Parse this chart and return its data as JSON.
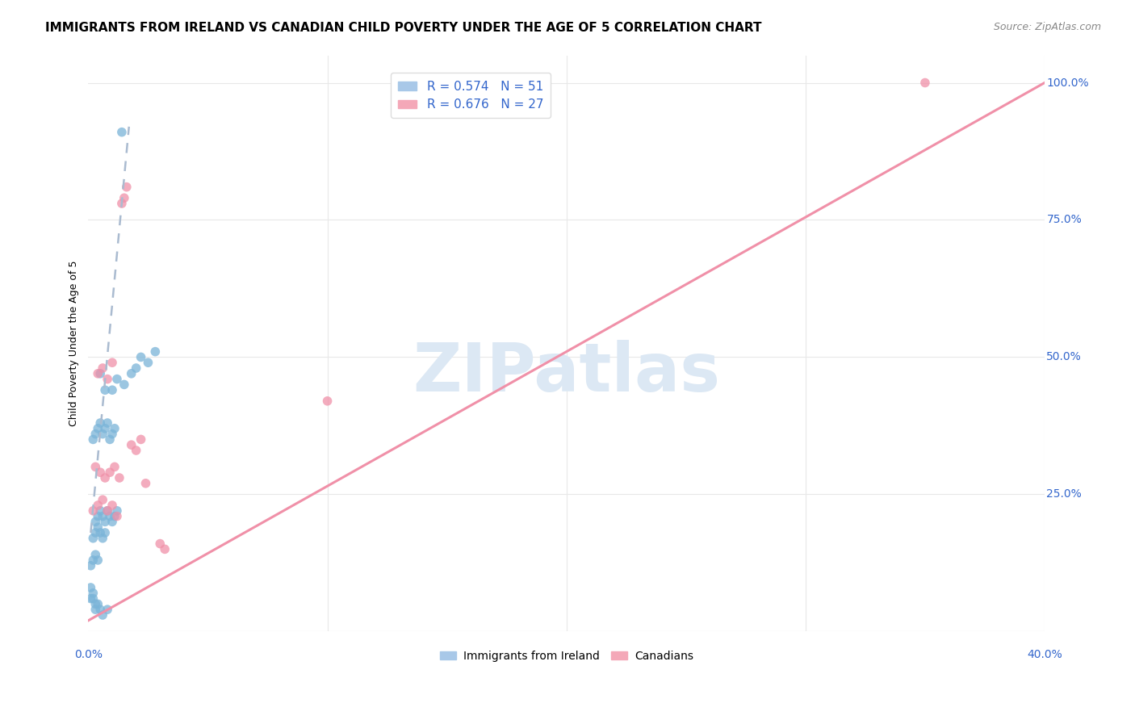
{
  "title": "IMMIGRANTS FROM IRELAND VS CANADIAN CHILD POVERTY UNDER THE AGE OF 5 CORRELATION CHART",
  "source": "Source: ZipAtlas.com",
  "ylabel": "Child Poverty Under the Age of 5",
  "watermark_text": "ZIPatlas",
  "ytick_vals": [
    0.25,
    0.5,
    0.75,
    1.0
  ],
  "ytick_labels": [
    "25.0%",
    "50.0%",
    "75.0%",
    "100.0%"
  ],
  "xtick_left_label": "0.0%",
  "xtick_right_label": "40.0%",
  "xlim": [
    0.0,
    0.4
  ],
  "ylim": [
    0.0,
    1.05
  ],
  "legend_entries": [
    {
      "label": "R = 0.574   N = 51",
      "color": "#a8c8e8"
    },
    {
      "label": "R = 0.676   N = 27",
      "color": "#f4a8b8"
    }
  ],
  "bottom_legend_entries": [
    {
      "label": "Immigrants from Ireland",
      "color": "#a8c8e8"
    },
    {
      "label": "Canadians",
      "color": "#f4a8b8"
    }
  ],
  "blue_scatter_x": [
    0.005,
    0.007,
    0.01,
    0.012,
    0.015,
    0.018,
    0.02,
    0.022,
    0.025,
    0.028,
    0.002,
    0.003,
    0.004,
    0.005,
    0.006,
    0.007,
    0.008,
    0.009,
    0.01,
    0.011,
    0.003,
    0.004,
    0.005,
    0.006,
    0.007,
    0.008,
    0.009,
    0.01,
    0.011,
    0.012,
    0.002,
    0.003,
    0.004,
    0.005,
    0.006,
    0.007,
    0.001,
    0.002,
    0.003,
    0.004,
    0.001,
    0.001,
    0.002,
    0.002,
    0.003,
    0.003,
    0.004,
    0.005,
    0.006,
    0.008,
    0.014
  ],
  "blue_scatter_y": [
    0.47,
    0.44,
    0.44,
    0.46,
    0.45,
    0.47,
    0.48,
    0.5,
    0.49,
    0.51,
    0.35,
    0.36,
    0.37,
    0.38,
    0.36,
    0.37,
    0.38,
    0.35,
    0.36,
    0.37,
    0.2,
    0.21,
    0.22,
    0.21,
    0.2,
    0.22,
    0.21,
    0.2,
    0.21,
    0.22,
    0.17,
    0.18,
    0.19,
    0.18,
    0.17,
    0.18,
    0.12,
    0.13,
    0.14,
    0.13,
    0.08,
    0.06,
    0.07,
    0.06,
    0.05,
    0.04,
    0.05,
    0.04,
    0.03,
    0.04,
    0.91
  ],
  "pink_scatter_x": [
    0.002,
    0.004,
    0.006,
    0.008,
    0.01,
    0.012,
    0.003,
    0.005,
    0.007,
    0.009,
    0.011,
    0.013,
    0.004,
    0.006,
    0.008,
    0.01,
    0.018,
    0.02,
    0.022,
    0.03,
    0.032,
    0.1,
    0.015,
    0.016,
    0.014,
    0.024,
    0.35
  ],
  "pink_scatter_y": [
    0.22,
    0.23,
    0.24,
    0.22,
    0.23,
    0.21,
    0.3,
    0.29,
    0.28,
    0.29,
    0.3,
    0.28,
    0.47,
    0.48,
    0.46,
    0.49,
    0.34,
    0.33,
    0.35,
    0.16,
    0.15,
    0.42,
    0.79,
    0.81,
    0.78,
    0.27,
    1.0
  ],
  "blue_line_x": [
    0.001,
    0.017
  ],
  "blue_line_y": [
    0.18,
    0.92
  ],
  "pink_line_x": [
    0.0,
    0.4
  ],
  "pink_line_y": [
    0.02,
    1.0
  ],
  "scatter_color_blue": "#7ab4d8",
  "scatter_color_pink": "#f090a8",
  "line_color_blue": "#aabbd0",
  "line_color_pink": "#f07090",
  "background_color": "#ffffff",
  "grid_color": "#e8e8e8",
  "title_fontsize": 11,
  "source_fontsize": 9,
  "ylabel_fontsize": 9,
  "watermark_color": "#dce8f4",
  "watermark_fontsize": 60,
  "scatter_size": 70,
  "scatter_alpha": 0.75
}
